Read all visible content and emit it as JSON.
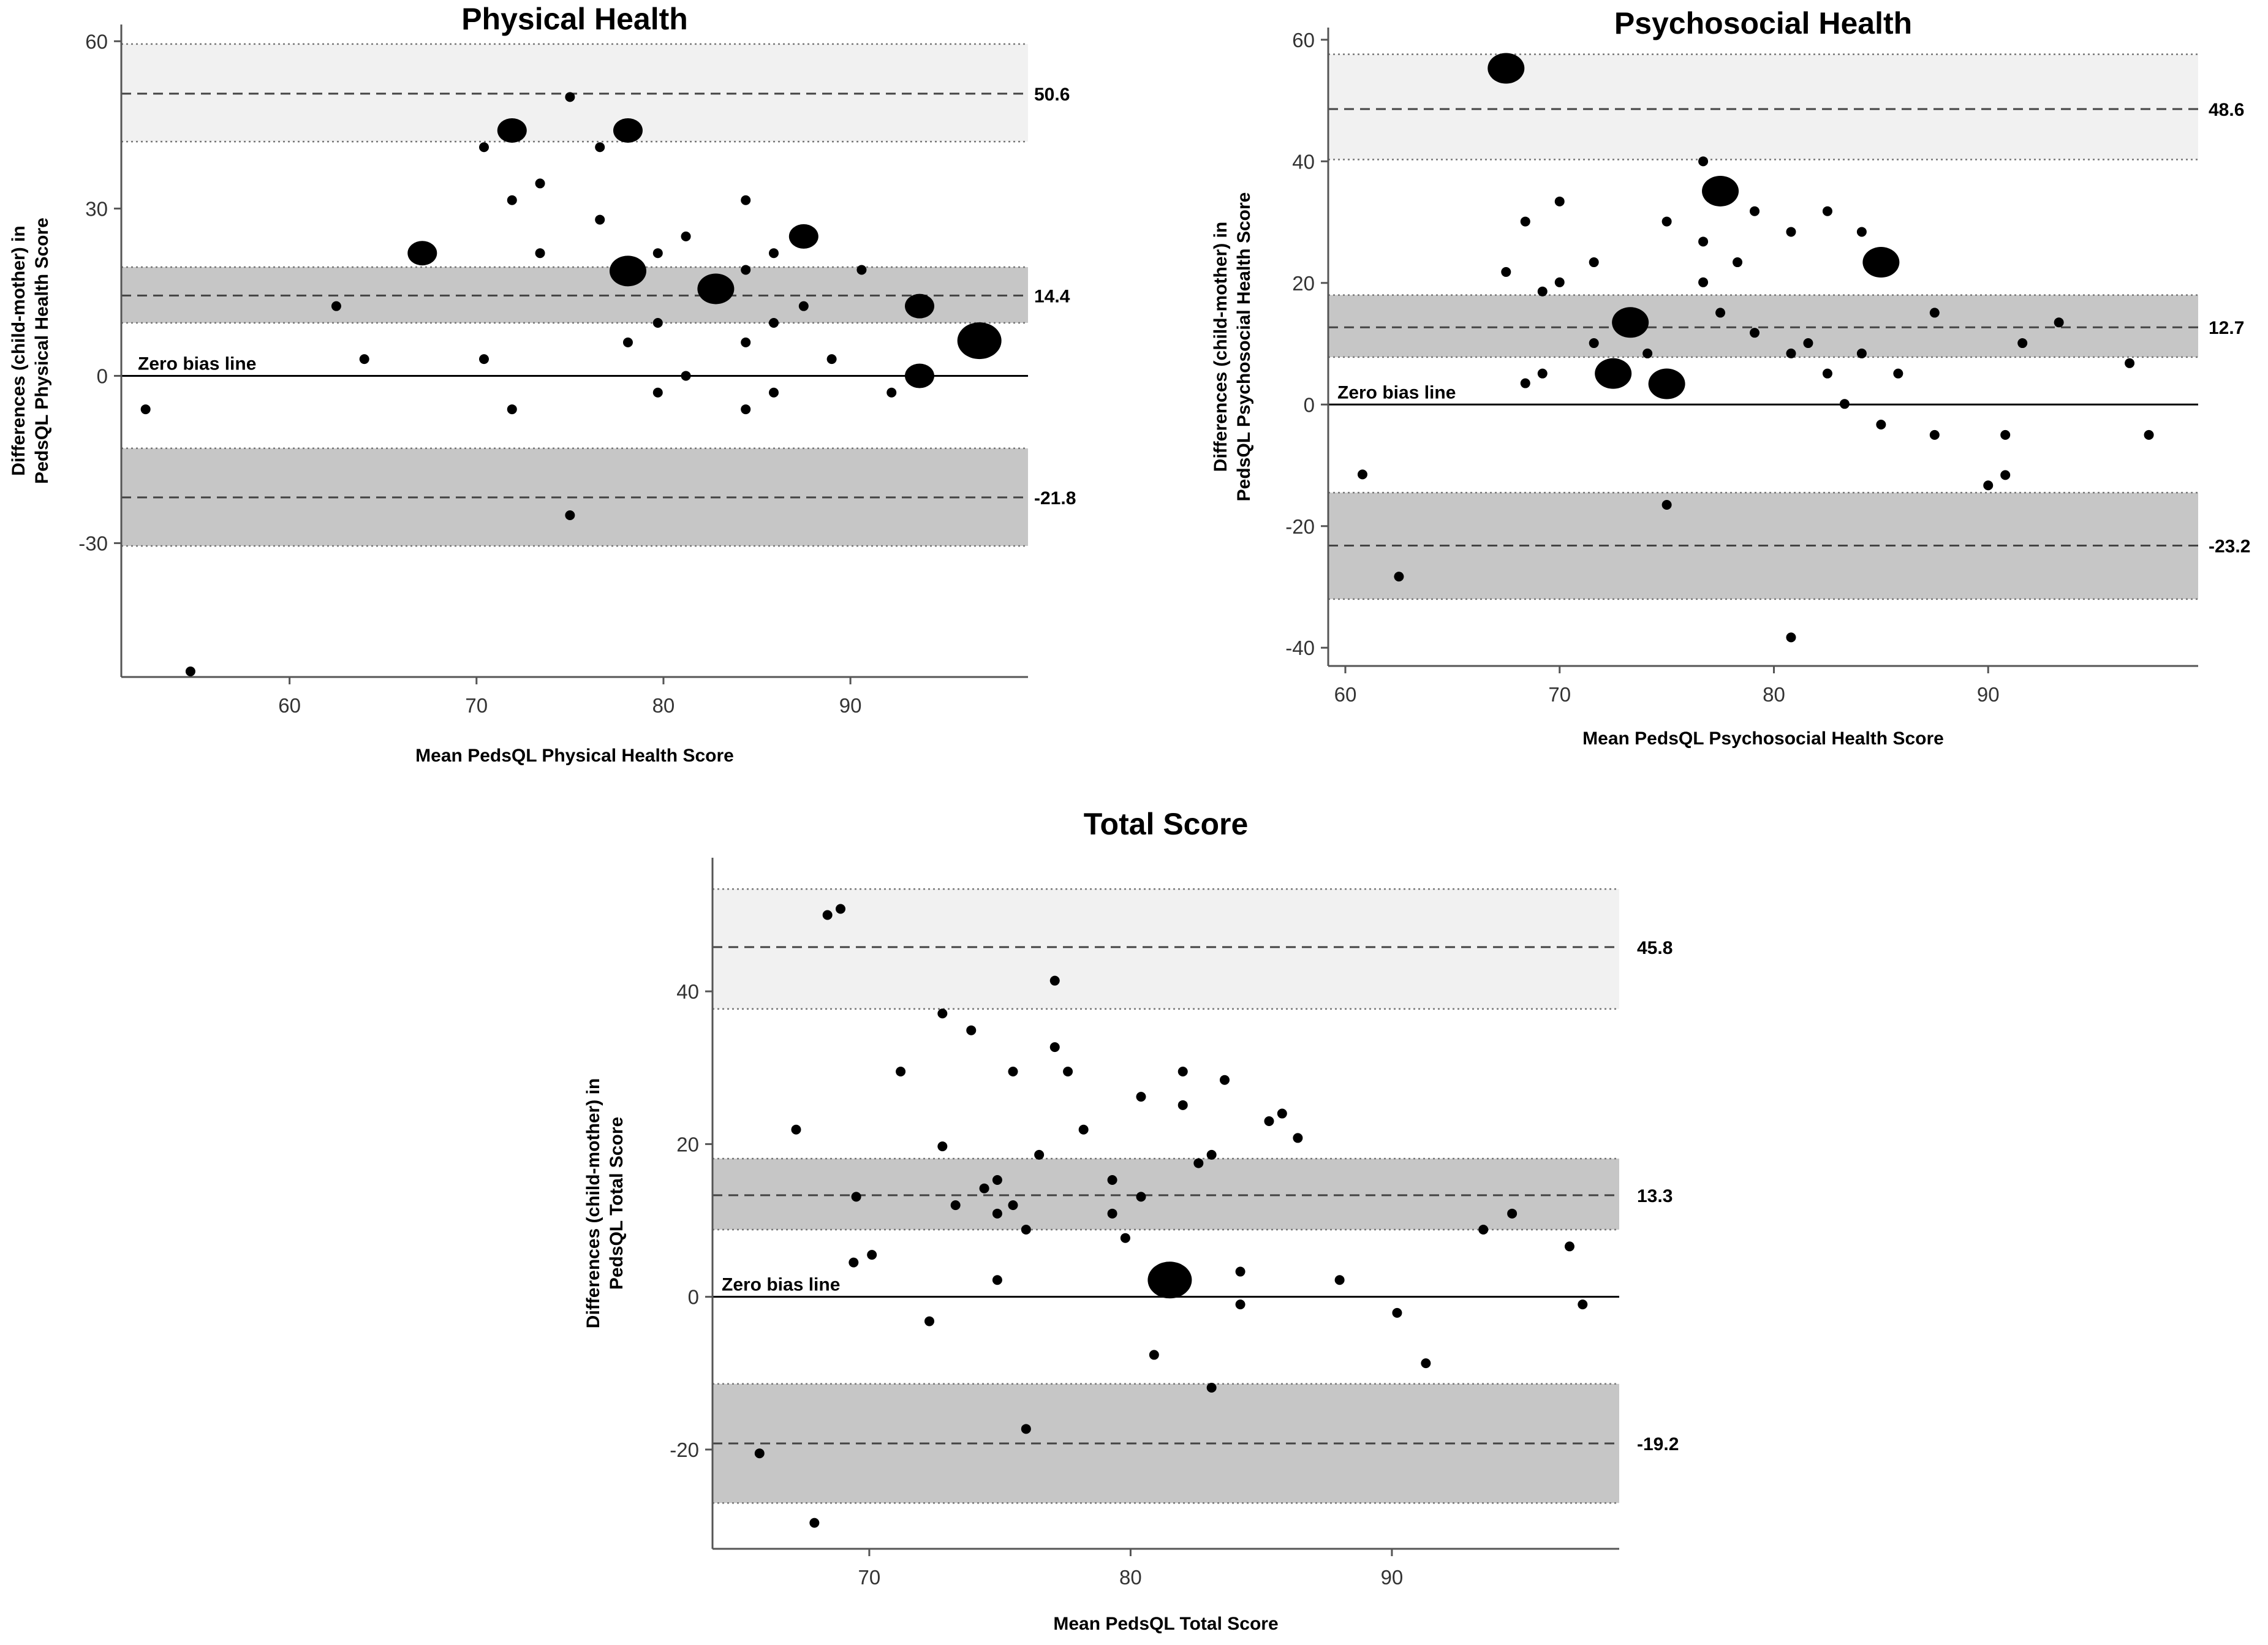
{
  "chart_data": [
    {
      "type": "scatter",
      "id": "physical",
      "title": "Physical Health",
      "xlabel": "Mean PedsQL Physical Health Score",
      "ylabel_line1": "Differences (child-mother) in",
      "ylabel_line2": "PedsQL Physical Health Score",
      "xlim": [
        51,
        99.5
      ],
      "ylim": [
        -54,
        63
      ],
      "xticks": [
        60,
        70,
        80,
        90
      ],
      "yticks": [
        -30,
        0,
        30,
        60
      ],
      "mean_bias": 14.4,
      "mean_bias_label": "14.4",
      "mean_bias_ci": [
        9.5,
        19.5
      ],
      "upper_loa": 50.6,
      "upper_loa_label": "50.6",
      "upper_loa_ci": [
        42,
        59.5
      ],
      "lower_loa": -21.8,
      "lower_loa_label": "-21.8",
      "lower_loa_ci": [
        -30.5,
        -13
      ],
      "zero_label": "Zero bias line",
      "points": [
        {
          "x": 54.7,
          "y": -53,
          "n": 1
        },
        {
          "x": 52.3,
          "y": -6,
          "n": 1
        },
        {
          "x": 62.5,
          "y": 12.5,
          "n": 1
        },
        {
          "x": 64,
          "y": 3,
          "n": 1
        },
        {
          "x": 67.1,
          "y": 22,
          "n": 2
        },
        {
          "x": 70.4,
          "y": 41,
          "n": 1
        },
        {
          "x": 70.4,
          "y": 3,
          "n": 1
        },
        {
          "x": 71.9,
          "y": 44,
          "n": 2
        },
        {
          "x": 71.9,
          "y": 31.5,
          "n": 1
        },
        {
          "x": 71.9,
          "y": -6,
          "n": 1
        },
        {
          "x": 73.4,
          "y": 34.5,
          "n": 1
        },
        {
          "x": 73.4,
          "y": 22,
          "n": 1
        },
        {
          "x": 75,
          "y": 50,
          "n": 1
        },
        {
          "x": 75,
          "y": -25,
          "n": 1
        },
        {
          "x": 76.6,
          "y": 41,
          "n": 1
        },
        {
          "x": 76.6,
          "y": 28,
          "n": 1
        },
        {
          "x": 78.1,
          "y": 44,
          "n": 2
        },
        {
          "x": 78.1,
          "y": 18.8,
          "n": 3
        },
        {
          "x": 78.1,
          "y": 6,
          "n": 1
        },
        {
          "x": 79.7,
          "y": 22,
          "n": 1
        },
        {
          "x": 79.7,
          "y": 9.5,
          "n": 1
        },
        {
          "x": 79.7,
          "y": -3,
          "n": 1
        },
        {
          "x": 81.2,
          "y": 25,
          "n": 1
        },
        {
          "x": 81.2,
          "y": 0,
          "n": 1
        },
        {
          "x": 82.8,
          "y": 15.6,
          "n": 3
        },
        {
          "x": 84.4,
          "y": 31.5,
          "n": 1
        },
        {
          "x": 84.4,
          "y": 19,
          "n": 1
        },
        {
          "x": 84.4,
          "y": 6,
          "n": 1
        },
        {
          "x": 84.4,
          "y": -6,
          "n": 1
        },
        {
          "x": 85.9,
          "y": 22,
          "n": 1
        },
        {
          "x": 85.9,
          "y": 9.5,
          "n": 1
        },
        {
          "x": 85.9,
          "y": -3,
          "n": 1
        },
        {
          "x": 87.5,
          "y": 25,
          "n": 2
        },
        {
          "x": 87.5,
          "y": 12.5,
          "n": 1
        },
        {
          "x": 89,
          "y": 3,
          "n": 1
        },
        {
          "x": 90.6,
          "y": 19,
          "n": 1
        },
        {
          "x": 92.2,
          "y": -3,
          "n": 1
        },
        {
          "x": 93.7,
          "y": 12.5,
          "n": 2
        },
        {
          "x": 93.7,
          "y": 0,
          "n": 2
        },
        {
          "x": 96.9,
          "y": 6.3,
          "n": 4
        }
      ]
    },
    {
      "type": "scatter",
      "id": "psychosocial",
      "title": "Psychosocial Health",
      "xlabel": "Mean PedsQL Psychosocial Health Score",
      "ylabel_line1": "Differences (child-mother) in",
      "ylabel_line2": "PedsQL Psychosocial Health Score",
      "xlim": [
        59.2,
        99.8
      ],
      "ylim": [
        -43,
        62
      ],
      "xticks": [
        60,
        70,
        80,
        90
      ],
      "yticks": [
        -40,
        -20,
        0,
        20,
        40,
        60
      ],
      "mean_bias": 12.7,
      "mean_bias_label": "12.7",
      "mean_bias_ci": [
        7.8,
        18
      ],
      "upper_loa": 48.6,
      "upper_loa_label": "48.6",
      "upper_loa_ci": [
        40.3,
        57.6
      ],
      "lower_loa": -23.2,
      "lower_loa_label": "-23.2",
      "lower_loa_ci": [
        -32,
        -14.5
      ],
      "zero_label": "Zero bias line",
      "points": [
        {
          "x": 60.8,
          "y": -11.5,
          "n": 1
        },
        {
          "x": 62.5,
          "y": -28.3,
          "n": 1
        },
        {
          "x": 67.5,
          "y": 55.3,
          "n": 3
        },
        {
          "x": 67.5,
          "y": 21.8,
          "n": 1
        },
        {
          "x": 68.4,
          "y": 30.1,
          "n": 1
        },
        {
          "x": 68.4,
          "y": 3.5,
          "n": 1
        },
        {
          "x": 69.2,
          "y": 18.6,
          "n": 1
        },
        {
          "x": 69.2,
          "y": 5.1,
          "n": 1
        },
        {
          "x": 70,
          "y": 33.4,
          "n": 1
        },
        {
          "x": 70,
          "y": 20.1,
          "n": 1
        },
        {
          "x": 71.6,
          "y": 23.4,
          "n": 1
        },
        {
          "x": 71.6,
          "y": 10.1,
          "n": 1
        },
        {
          "x": 72.5,
          "y": 5.1,
          "n": 3
        },
        {
          "x": 73.3,
          "y": 13.5,
          "n": 3
        },
        {
          "x": 74.1,
          "y": 8.4,
          "n": 1
        },
        {
          "x": 75,
          "y": 30.1,
          "n": 1
        },
        {
          "x": 75,
          "y": 3.4,
          "n": 3
        },
        {
          "x": 75,
          "y": -16.5,
          "n": 1
        },
        {
          "x": 76.7,
          "y": 40,
          "n": 1
        },
        {
          "x": 76.7,
          "y": 26.8,
          "n": 1
        },
        {
          "x": 76.7,
          "y": 20.1,
          "n": 1
        },
        {
          "x": 77.5,
          "y": 35.1,
          "n": 3
        },
        {
          "x": 77.5,
          "y": 15.1,
          "n": 1
        },
        {
          "x": 78.3,
          "y": 23.4,
          "n": 1
        },
        {
          "x": 79.1,
          "y": 31.8,
          "n": 1
        },
        {
          "x": 79.1,
          "y": 11.8,
          "n": 1
        },
        {
          "x": 80.8,
          "y": 28.4,
          "n": 1
        },
        {
          "x": 80.8,
          "y": 8.4,
          "n": 1
        },
        {
          "x": 80.8,
          "y": -38.3,
          "n": 1
        },
        {
          "x": 81.6,
          "y": 10.1,
          "n": 1
        },
        {
          "x": 82.5,
          "y": 31.8,
          "n": 1
        },
        {
          "x": 82.5,
          "y": 5.1,
          "n": 1
        },
        {
          "x": 83.3,
          "y": 0.1,
          "n": 1
        },
        {
          "x": 84.1,
          "y": 28.4,
          "n": 1
        },
        {
          "x": 84.1,
          "y": 8.4,
          "n": 1
        },
        {
          "x": 85,
          "y": 23.4,
          "n": 3
        },
        {
          "x": 85,
          "y": -3.3,
          "n": 1
        },
        {
          "x": 85.8,
          "y": 5.1,
          "n": 1
        },
        {
          "x": 87.5,
          "y": 15.1,
          "n": 1
        },
        {
          "x": 87.5,
          "y": -5,
          "n": 1
        },
        {
          "x": 90,
          "y": -13.3,
          "n": 1
        },
        {
          "x": 90.8,
          "y": -5,
          "n": 1
        },
        {
          "x": 90.8,
          "y": -11.6,
          "n": 1
        },
        {
          "x": 91.6,
          "y": 10.1,
          "n": 1
        },
        {
          "x": 93.3,
          "y": 13.5,
          "n": 1
        },
        {
          "x": 96.6,
          "y": 6.8,
          "n": 1
        },
        {
          "x": 97.5,
          "y": -5,
          "n": 1
        }
      ]
    },
    {
      "type": "scatter",
      "id": "total",
      "title": "Total Score",
      "xlabel": "Mean PedsQL Total Score",
      "ylabel_line1": "Differences (child-mother) in",
      "ylabel_line2": "PedsQL Total  Score",
      "xlim": [
        64,
        98.7
      ],
      "ylim": [
        -33,
        57.5
      ],
      "xticks": [
        70,
        80,
        90
      ],
      "yticks": [
        -20,
        0,
        20,
        40
      ],
      "mean_bias": 13.3,
      "mean_bias_label": "13.3",
      "mean_bias_ci": [
        8.8,
        18.1
      ],
      "upper_loa": 45.8,
      "upper_loa_label": "45.8",
      "upper_loa_ci": [
        37.7,
        53.4
      ],
      "lower_loa": -19.2,
      "lower_loa_label": "-19.2",
      "lower_loa_ci": [
        -27,
        -11.4
      ],
      "zero_label": "Zero bias line",
      "points": [
        {
          "x": 65.8,
          "y": -20.5,
          "n": 1
        },
        {
          "x": 67.2,
          "y": 21.9,
          "n": 1
        },
        {
          "x": 67.9,
          "y": -29.6,
          "n": 1
        },
        {
          "x": 68.4,
          "y": 50,
          "n": 1
        },
        {
          "x": 68.9,
          "y": 50.8,
          "n": 1
        },
        {
          "x": 69.4,
          "y": 4.5,
          "n": 1
        },
        {
          "x": 69.5,
          "y": 13.1,
          "n": 1
        },
        {
          "x": 70.1,
          "y": 5.5,
          "n": 1
        },
        {
          "x": 71.2,
          "y": 29.5,
          "n": 1
        },
        {
          "x": 72.3,
          "y": -3.2,
          "n": 1
        },
        {
          "x": 72.8,
          "y": 37.1,
          "n": 1
        },
        {
          "x": 72.8,
          "y": 19.7,
          "n": 1
        },
        {
          "x": 73.3,
          "y": 12,
          "n": 1
        },
        {
          "x": 73.9,
          "y": 34.9,
          "n": 1
        },
        {
          "x": 74.4,
          "y": 14.2,
          "n": 1
        },
        {
          "x": 74.9,
          "y": 15.3,
          "n": 1
        },
        {
          "x": 74.9,
          "y": 10.9,
          "n": 1
        },
        {
          "x": 74.9,
          "y": 2.2,
          "n": 1
        },
        {
          "x": 75.5,
          "y": 29.5,
          "n": 1
        },
        {
          "x": 75.5,
          "y": 12,
          "n": 1
        },
        {
          "x": 76,
          "y": 8.8,
          "n": 1
        },
        {
          "x": 76,
          "y": -17.3,
          "n": 1
        },
        {
          "x": 76.5,
          "y": 18.6,
          "n": 1
        },
        {
          "x": 77.1,
          "y": 41.4,
          "n": 1
        },
        {
          "x": 77.1,
          "y": 32.7,
          "n": 1
        },
        {
          "x": 77.6,
          "y": 29.5,
          "n": 1
        },
        {
          "x": 78.2,
          "y": 21.9,
          "n": 1
        },
        {
          "x": 79.3,
          "y": 15.3,
          "n": 1
        },
        {
          "x": 79.3,
          "y": 10.9,
          "n": 1
        },
        {
          "x": 79.8,
          "y": 7.7,
          "n": 1
        },
        {
          "x": 80.4,
          "y": 26.2,
          "n": 1
        },
        {
          "x": 80.4,
          "y": 13.1,
          "n": 1
        },
        {
          "x": 80.9,
          "y": -7.6,
          "n": 1
        },
        {
          "x": 81.5,
          "y": 2.2,
          "n": 4
        },
        {
          "x": 82,
          "y": 29.5,
          "n": 1
        },
        {
          "x": 82,
          "y": 25.1,
          "n": 1
        },
        {
          "x": 82.6,
          "y": 17.5,
          "n": 1
        },
        {
          "x": 83.1,
          "y": 18.6,
          "n": 1
        },
        {
          "x": 83.1,
          "y": -11.9,
          "n": 1
        },
        {
          "x": 83.6,
          "y": 28.4,
          "n": 1
        },
        {
          "x": 84.2,
          "y": 3.3,
          "n": 1
        },
        {
          "x": 84.2,
          "y": -1,
          "n": 1
        },
        {
          "x": 85.3,
          "y": 23,
          "n": 1
        },
        {
          "x": 85.8,
          "y": 24,
          "n": 1
        },
        {
          "x": 86.4,
          "y": 20.8,
          "n": 1
        },
        {
          "x": 88,
          "y": 2.2,
          "n": 1
        },
        {
          "x": 90.2,
          "y": -2.1,
          "n": 1
        },
        {
          "x": 91.3,
          "y": -8.7,
          "n": 1
        },
        {
          "x": 93.5,
          "y": 8.8,
          "n": 1
        },
        {
          "x": 94.6,
          "y": 10.9,
          "n": 1
        },
        {
          "x": 96.8,
          "y": 6.6,
          "n": 1
        },
        {
          "x": 97.3,
          "y": -1,
          "n": 1
        }
      ]
    }
  ]
}
